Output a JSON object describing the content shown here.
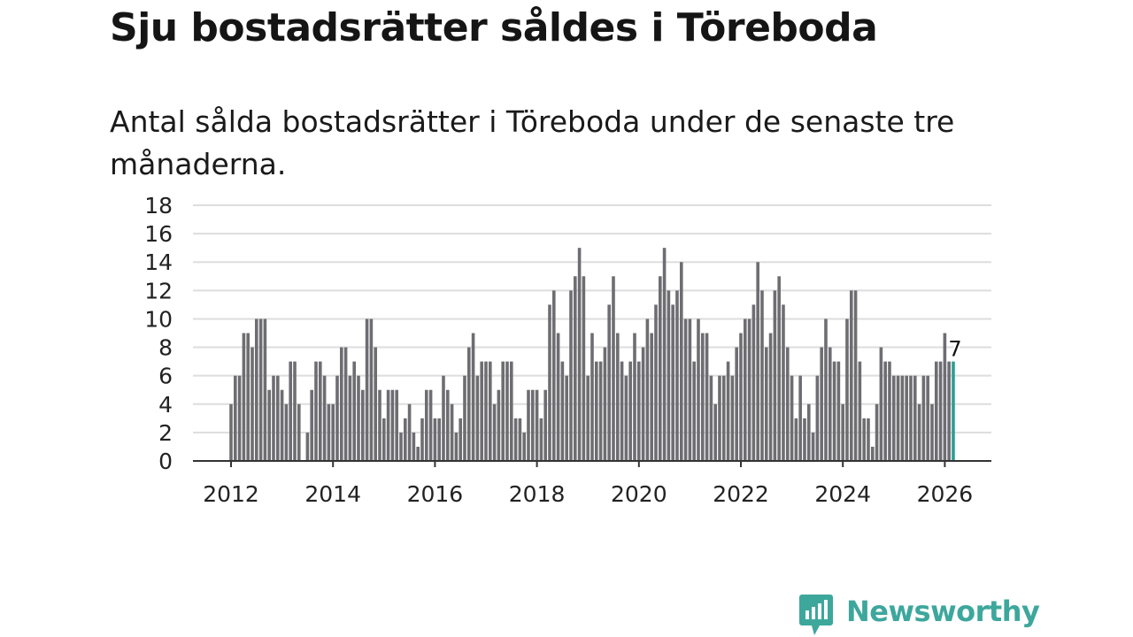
{
  "title": "Sju bostadsrätter såldes i Töreboda",
  "subtitle": "Antal sålda bostadsrätter i Töreboda under de senaste tre månaderna.",
  "colors": {
    "bar": "#6d6d72",
    "highlight": "#2a9d94",
    "grid": "#dddddd",
    "axis": "#333333",
    "brand": "#3da79c"
  },
  "logo": {
    "text": "Newsworthy",
    "icon": "chart-bubble-icon"
  },
  "chart_data": {
    "type": "bar",
    "title": "Sju bostadsrätter såldes i Töreboda",
    "xlabel": "",
    "ylabel": "",
    "ylim": [
      0,
      18
    ],
    "yticks": [
      0,
      2,
      4,
      6,
      8,
      10,
      12,
      14,
      16,
      18
    ],
    "xticks": [
      2012,
      2014,
      2016,
      2018,
      2020,
      2022,
      2024,
      2026
    ],
    "x_start": 2012.0,
    "x_step_years": 0.08333,
    "grid": true,
    "values": [
      4,
      6,
      6,
      9,
      9,
      8,
      10,
      10,
      10,
      5,
      6,
      6,
      5,
      4,
      7,
      7,
      4,
      0,
      2,
      5,
      7,
      7,
      6,
      4,
      4,
      6,
      8,
      8,
      6,
      7,
      6,
      5,
      10,
      10,
      8,
      5,
      3,
      5,
      5,
      5,
      2,
      3,
      4,
      2,
      1,
      3,
      5,
      5,
      3,
      3,
      6,
      5,
      4,
      2,
      3,
      6,
      8,
      9,
      6,
      7,
      7,
      7,
      4,
      5,
      7,
      7,
      7,
      3,
      3,
      2,
      5,
      5,
      5,
      3,
      5,
      11,
      12,
      9,
      7,
      6,
      12,
      13,
      15,
      13,
      6,
      9,
      7,
      7,
      8,
      11,
      13,
      9,
      7,
      6,
      7,
      9,
      7,
      8,
      10,
      9,
      11,
      13,
      15,
      12,
      11,
      12,
      14,
      10,
      10,
      7,
      10,
      9,
      9,
      6,
      4,
      6,
      6,
      7,
      6,
      8,
      9,
      10,
      10,
      11,
      14,
      12,
      8,
      9,
      12,
      13,
      11,
      8,
      6,
      3,
      6,
      3,
      4,
      2,
      6,
      8,
      10,
      8,
      7,
      7,
      4,
      10,
      12,
      12,
      7,
      3,
      3,
      1,
      4,
      8,
      7,
      7,
      6,
      6,
      6,
      6,
      6,
      6,
      4,
      6,
      6,
      4,
      7,
      7,
      9,
      7,
      7
    ],
    "highlight": {
      "label": "7",
      "value": 7
    }
  }
}
